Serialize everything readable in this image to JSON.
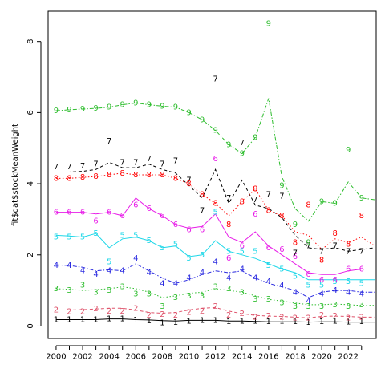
{
  "chart_data": {
    "type": "line",
    "title": "",
    "xlabel": "",
    "ylabel": "fit$dat$stockMeanWeight",
    "xlim": [
      1999.4,
      2024.1
    ],
    "ylim": [
      -0.35,
      8.85
    ],
    "x_ticks": [
      2000,
      2002,
      2004,
      2006,
      2008,
      2010,
      2012,
      2014,
      2016,
      2018,
      2020,
      2022
    ],
    "y_ticks": [
      0,
      2,
      4,
      6,
      8
    ],
    "grid": false,
    "legend": "none",
    "x": [
      2000,
      2001,
      2002,
      2003,
      2004,
      2005,
      2006,
      2007,
      2008,
      2009,
      2010,
      2011,
      2012,
      2013,
      2014,
      2015,
      2016,
      2017,
      2018,
      2019,
      2020,
      2021,
      2022,
      2023,
      2024
    ],
    "observed_x": [
      2000,
      2001,
      2002,
      2003,
      2004,
      2005,
      2006,
      2007,
      2008,
      2009,
      2010,
      2011,
      2012,
      2013,
      2014,
      2015,
      2016,
      2017,
      2018,
      2019,
      2020,
      2021,
      2022,
      2023
    ],
    "series": [
      {
        "name": "1",
        "color": "#000000",
        "dash": "",
        "label_dy": 0.0,
        "fitted": [
          0.18,
          0.18,
          0.18,
          0.18,
          0.2,
          0.2,
          0.18,
          0.17,
          0.15,
          0.14,
          0.16,
          0.16,
          0.16,
          0.14,
          0.14,
          0.13,
          0.12,
          0.12,
          0.12,
          0.11,
          0.12,
          0.12,
          0.11,
          0.11,
          0.11
        ],
        "observed": [
          0.18,
          0.18,
          0.18,
          0.18,
          0.2,
          0.2,
          0.17,
          0.15,
          0.09,
          0.1,
          0.14,
          0.16,
          0.16,
          0.12,
          0.14,
          0.14,
          0.12,
          0.13,
          0.12,
          0.1,
          0.12,
          0.13,
          0.11,
          0.12
        ]
      },
      {
        "name": "2",
        "color": "#df536b",
        "dash": "4,3",
        "label_dy": 0.0,
        "fitted": [
          0.45,
          0.45,
          0.46,
          0.48,
          0.5,
          0.5,
          0.45,
          0.38,
          0.36,
          0.38,
          0.45,
          0.5,
          0.52,
          0.42,
          0.35,
          0.3,
          0.28,
          0.27,
          0.25,
          0.23,
          0.27,
          0.28,
          0.27,
          0.25,
          0.25
        ],
        "observed": [
          0.45,
          0.4,
          0.4,
          0.48,
          0.42,
          0.42,
          0.5,
          0.3,
          0.33,
          0.3,
          0.38,
          0.42,
          0.55,
          0.3,
          0.35,
          0.25,
          0.28,
          0.25,
          0.22,
          0.22,
          0.3,
          0.28,
          0.22,
          0.25
        ]
      },
      {
        "name": "3",
        "color": "#2ebd2e",
        "dash": "1.5,2.5",
        "label_dy": 0.0,
        "fitted": [
          1.05,
          1.03,
          1.0,
          1.02,
          1.05,
          1.1,
          1.05,
          0.95,
          0.8,
          0.85,
          0.92,
          0.95,
          1.05,
          1.0,
          0.95,
          0.85,
          0.75,
          0.7,
          0.65,
          0.6,
          0.6,
          0.62,
          0.6,
          0.58,
          0.58
        ],
        "observed": [
          1.05,
          1.0,
          1.15,
          0.95,
          1.0,
          1.1,
          0.9,
          0.9,
          0.55,
          0.8,
          0.85,
          0.85,
          1.1,
          1.05,
          0.95,
          0.75,
          0.75,
          0.65,
          0.55,
          0.55,
          0.55,
          0.6,
          0.55,
          0.6
        ]
      },
      {
        "name": "4",
        "color": "#2a2ae0",
        "dash": "5,2,1.5,2",
        "label_dy": 0.0,
        "fitted": [
          1.72,
          1.7,
          1.65,
          1.55,
          1.58,
          1.55,
          1.75,
          1.55,
          1.35,
          1.2,
          1.3,
          1.45,
          1.55,
          1.5,
          1.55,
          1.35,
          1.2,
          1.1,
          1.0,
          0.8,
          0.95,
          1.0,
          1.0,
          0.95,
          0.95
        ],
        "observed": [
          1.7,
          1.7,
          1.55,
          1.45,
          1.55,
          1.55,
          1.9,
          1.5,
          1.2,
          1.2,
          1.35,
          1.5,
          1.8,
          1.35,
          1.6,
          1.35,
          1.25,
          1.15,
          0.95,
          0.7,
          0.9,
          1.0,
          0.95,
          0.9
        ]
      },
      {
        "name": "5",
        "color": "#1ed7e8",
        "dash": "",
        "label_dy": 0.0,
        "fitted": [
          2.55,
          2.53,
          2.5,
          2.6,
          2.2,
          2.45,
          2.5,
          2.4,
          2.2,
          2.25,
          1.95,
          2.0,
          2.4,
          2.1,
          2.0,
          1.9,
          1.75,
          1.6,
          1.5,
          1.3,
          1.3,
          1.3,
          1.3,
          1.3,
          1.3
        ],
        "observed": [
          2.5,
          2.5,
          2.5,
          2.6,
          1.8,
          2.55,
          2.55,
          2.4,
          2.2,
          2.3,
          1.9,
          2.0,
          3.2,
          2.1,
          2.1,
          2.1,
          1.7,
          1.6,
          1.4,
          1.15,
          1.15,
          1.25,
          1.25,
          1.2
        ]
      },
      {
        "name": "6",
        "color": "#e81ee8",
        "dash": "",
        "label_dy": 0.0,
        "fitted": [
          3.2,
          3.2,
          3.2,
          3.15,
          3.2,
          3.1,
          3.6,
          3.3,
          3.1,
          2.85,
          2.75,
          2.8,
          3.15,
          2.5,
          2.35,
          2.65,
          2.25,
          2.0,
          1.75,
          1.5,
          1.45,
          1.45,
          1.55,
          1.6,
          1.6
        ],
        "observed": [
          3.2,
          3.2,
          3.2,
          2.95,
          3.2,
          3.1,
          3.4,
          3.3,
          3.1,
          2.85,
          2.7,
          2.7,
          4.7,
          1.9,
          2.25,
          3.15,
          2.2,
          2.15,
          1.95,
          1.45,
          1.3,
          1.3,
          1.6,
          1.6
        ]
      },
      {
        "name": "7",
        "color": "#000000",
        "dash": "4,3",
        "label_dy": 0.15,
        "fitted": [
          4.33,
          4.33,
          4.35,
          4.4,
          4.6,
          4.45,
          4.45,
          4.55,
          4.4,
          4.3,
          3.95,
          3.6,
          4.4,
          3.45,
          4.1,
          3.4,
          3.3,
          3.05,
          2.55,
          2.2,
          2.15,
          2.2,
          2.1,
          2.15,
          2.2
        ],
        "observed": [
          4.33,
          4.33,
          4.35,
          4.4,
          5.05,
          4.45,
          4.45,
          4.55,
          4.4,
          4.5,
          3.95,
          3.1,
          6.8,
          3.45,
          5.0,
          3.4,
          3.55,
          3.5,
          1.9,
          2.1,
          1.95,
          2.1,
          1.95,
          1.95
        ]
      },
      {
        "name": "8",
        "color": "#ff0000",
        "dash": "1.5,2.5",
        "label_dy": 0.0,
        "fitted": [
          4.15,
          4.15,
          4.18,
          4.2,
          4.25,
          4.3,
          4.25,
          4.25,
          4.25,
          4.15,
          4.0,
          3.7,
          3.45,
          3.1,
          3.5,
          3.85,
          3.25,
          3.1,
          2.65,
          2.55,
          2.15,
          2.45,
          2.35,
          2.5,
          2.25
        ],
        "observed": [
          4.15,
          4.15,
          4.18,
          4.2,
          4.25,
          4.3,
          4.25,
          4.25,
          4.25,
          4.15,
          4.0,
          3.7,
          3.45,
          2.85,
          3.5,
          3.85,
          3.25,
          3.1,
          2.35,
          3.4,
          1.85,
          2.6,
          2.3,
          3.1
        ]
      },
      {
        "name": "9",
        "color": "#2ebd2e",
        "dash": "5,2,1.5,2",
        "label_dy": 0.0,
        "fitted": [
          6.05,
          6.08,
          6.1,
          6.12,
          6.15,
          6.22,
          6.27,
          6.22,
          6.18,
          6.15,
          6.0,
          5.8,
          5.5,
          5.1,
          4.85,
          5.3,
          6.4,
          4.2,
          3.3,
          2.95,
          3.5,
          3.45,
          4.05,
          3.6,
          3.55
        ],
        "observed": [
          6.05,
          6.08,
          6.1,
          6.12,
          6.15,
          6.22,
          6.27,
          6.22,
          6.18,
          6.15,
          6.0,
          5.8,
          5.5,
          5.1,
          4.85,
          5.3,
          8.5,
          3.95,
          2.85,
          2.35,
          3.5,
          3.45,
          4.95,
          3.6
        ]
      }
    ]
  }
}
